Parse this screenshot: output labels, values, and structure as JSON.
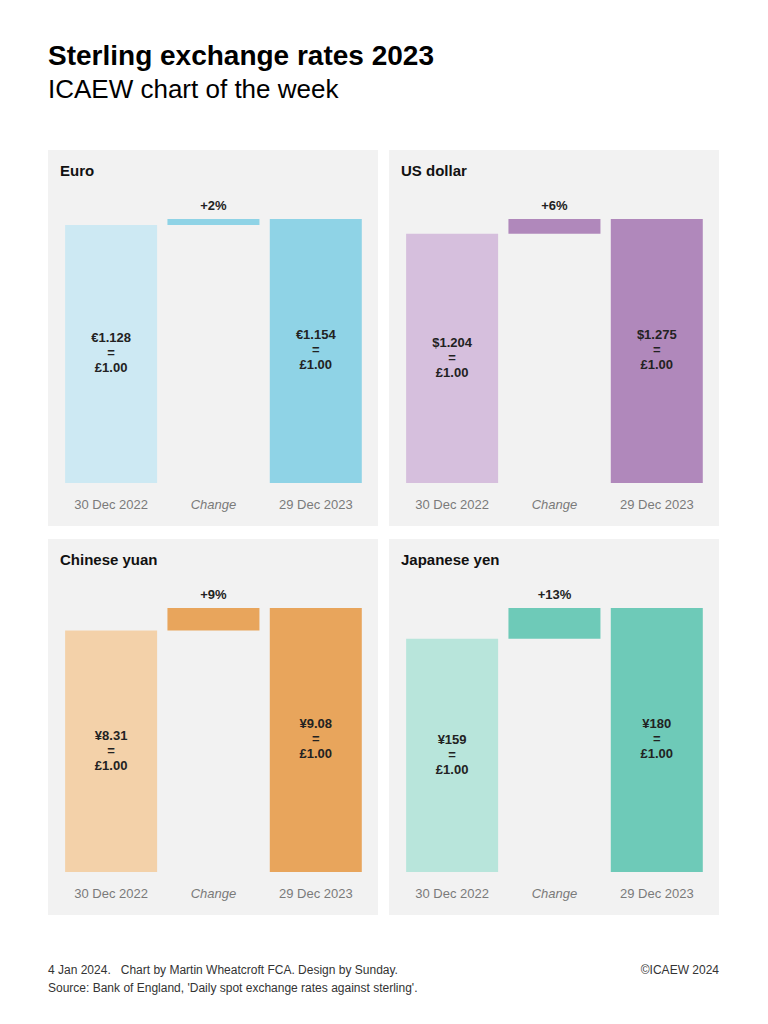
{
  "title": "Sterling exchange rates 2023",
  "subtitle": "ICAEW chart of the week",
  "footer": {
    "line1": "4 Jan 2024.   Chart by Martin Wheatcroft FCA. Design by Sunday.",
    "line2": "Source: Bank of England, 'Daily spot exchange rates against sterling'.",
    "copyright": "©ICAEW 2024"
  },
  "chart_data": [
    {
      "type": "waterfall",
      "title": "Euro",
      "categories": [
        "30 Dec 2022",
        "Change",
        "29 Dec 2023"
      ],
      "values": [
        1.128,
        null,
        1.154
      ],
      "value_labels": [
        "€1.128 = £1.00",
        null,
        "€1.154 = £1.00"
      ],
      "change": {
        "value": 2,
        "label": "+2%"
      },
      "colors": [
        "#cde9f3",
        "#8fd3e6",
        "#8fd3e6"
      ],
      "ylim": [
        0,
        1.154
      ],
      "tick_labels": "x",
      "data_labels": true
    },
    {
      "type": "waterfall",
      "title": "US dollar",
      "categories": [
        "30 Dec 2022",
        "Change",
        "29 Dec 2023"
      ],
      "values": [
        1.204,
        null,
        1.275
      ],
      "value_labels": [
        "$1.204 = £1.00",
        null,
        "$1.275 = £1.00"
      ],
      "change": {
        "value": 6,
        "label": "+6%"
      },
      "colors": [
        "#d6bfdd",
        "#b088bb",
        "#b088bb"
      ],
      "ylim": [
        0,
        1.275
      ],
      "tick_labels": "x",
      "data_labels": true
    },
    {
      "type": "waterfall",
      "title": "Chinese yuan",
      "categories": [
        "30 Dec 2022",
        "Change",
        "29 Dec 2023"
      ],
      "values": [
        8.31,
        null,
        9.08
      ],
      "value_labels": [
        "¥8.31 = £1.00",
        null,
        "¥9.08 = £1.00"
      ],
      "change": {
        "value": 9,
        "label": "+9%"
      },
      "colors": [
        "#f3d1a9",
        "#e8a55c",
        "#e8a55c"
      ],
      "ylim": [
        0,
        9.08
      ],
      "tick_labels": "x",
      "data_labels": true
    },
    {
      "type": "waterfall",
      "title": "Japanese yen",
      "categories": [
        "30 Dec 2022",
        "Change",
        "29 Dec 2023"
      ],
      "values": [
        159,
        null,
        180
      ],
      "value_labels": [
        "¥159 = £1.00",
        null,
        "¥180 = £1.00"
      ],
      "change": {
        "value": 13,
        "label": "+13%"
      },
      "colors": [
        "#b8e5db",
        "#6ecab8",
        "#6ecab8"
      ],
      "ylim": [
        0,
        180
      ],
      "tick_labels": "x",
      "data_labels": true
    }
  ]
}
